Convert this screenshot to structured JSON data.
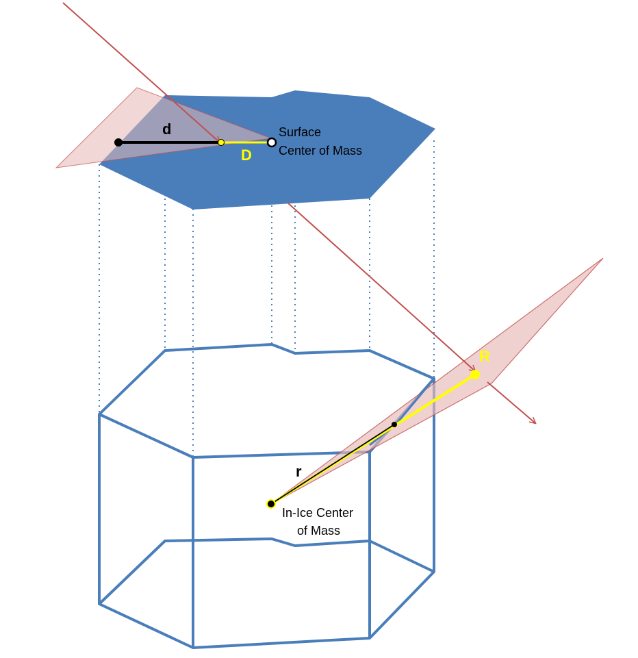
{
  "labels": {
    "d": "d",
    "D": "D",
    "surface_com_line1": "Surface",
    "surface_com_line2": "Center of Mass",
    "R": "R",
    "r": "r",
    "inice_com_line1": "In-Ice Center",
    "inice_com_line2": "of Mass"
  },
  "colors": {
    "surface_fill": "#4a7ebb",
    "ice_outline": "#4a7ebb",
    "plane_fill": "#e6b8b7",
    "plane_edge": "#c0504d",
    "track": "#c0504d",
    "highlight": "#ffff00",
    "marker": "#000000",
    "projection": "#4a7ebb"
  }
}
